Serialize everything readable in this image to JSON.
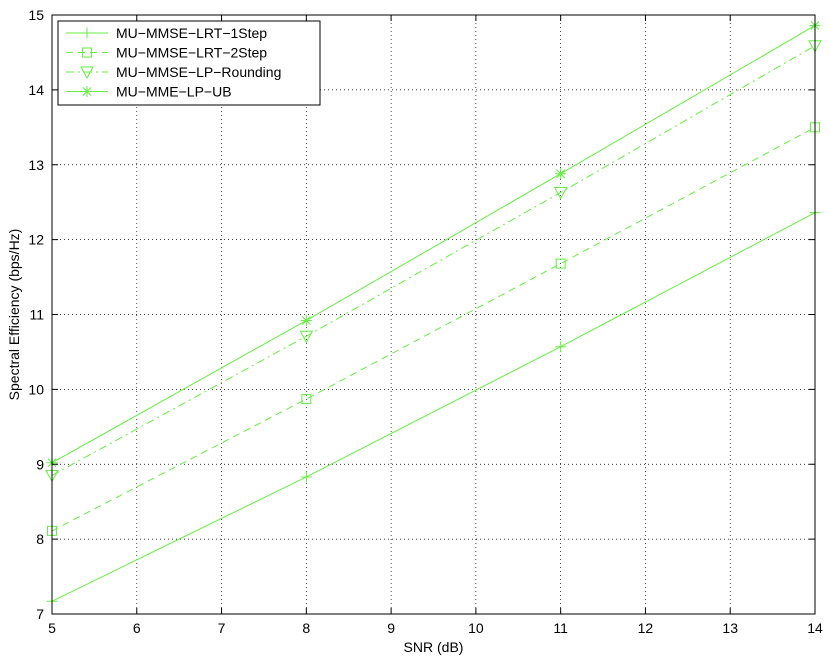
{
  "chart_data": {
    "type": "line",
    "xlabel": "SNR (dB)",
    "ylabel": "Spectral Efficiency (bps/Hz)",
    "xlim": [
      5,
      14
    ],
    "ylim": [
      7,
      15
    ],
    "xticks": [
      "5",
      "6",
      "7",
      "8",
      "9",
      "10",
      "11",
      "12",
      "13",
      "14"
    ],
    "yticks": [
      "7",
      "8",
      "9",
      "10",
      "11",
      "12",
      "13",
      "14",
      "15"
    ],
    "grid": true,
    "legend_position": "top-left",
    "line_color": "#66ee44",
    "x": [
      5,
      8,
      11,
      14
    ],
    "series": [
      {
        "name": "MU−MMSE−LRT−1Step",
        "marker": "plus",
        "dash": "solid",
        "values": [
          7.17,
          8.83,
          10.57,
          12.36
        ]
      },
      {
        "name": "MU−MMSE−LRT−2Step",
        "marker": "square",
        "dash": "dashed",
        "values": [
          8.11,
          9.87,
          11.68,
          13.5
        ]
      },
      {
        "name": "MU−MMSE−LP−Rounding",
        "marker": "triangle-down",
        "dash": "dashdot",
        "values": [
          8.85,
          10.71,
          12.63,
          14.59
        ]
      },
      {
        "name": "MU−MME−LP−UB",
        "marker": "asterisk",
        "dash": "solid",
        "values": [
          9.02,
          10.92,
          12.88,
          14.86
        ]
      }
    ]
  }
}
